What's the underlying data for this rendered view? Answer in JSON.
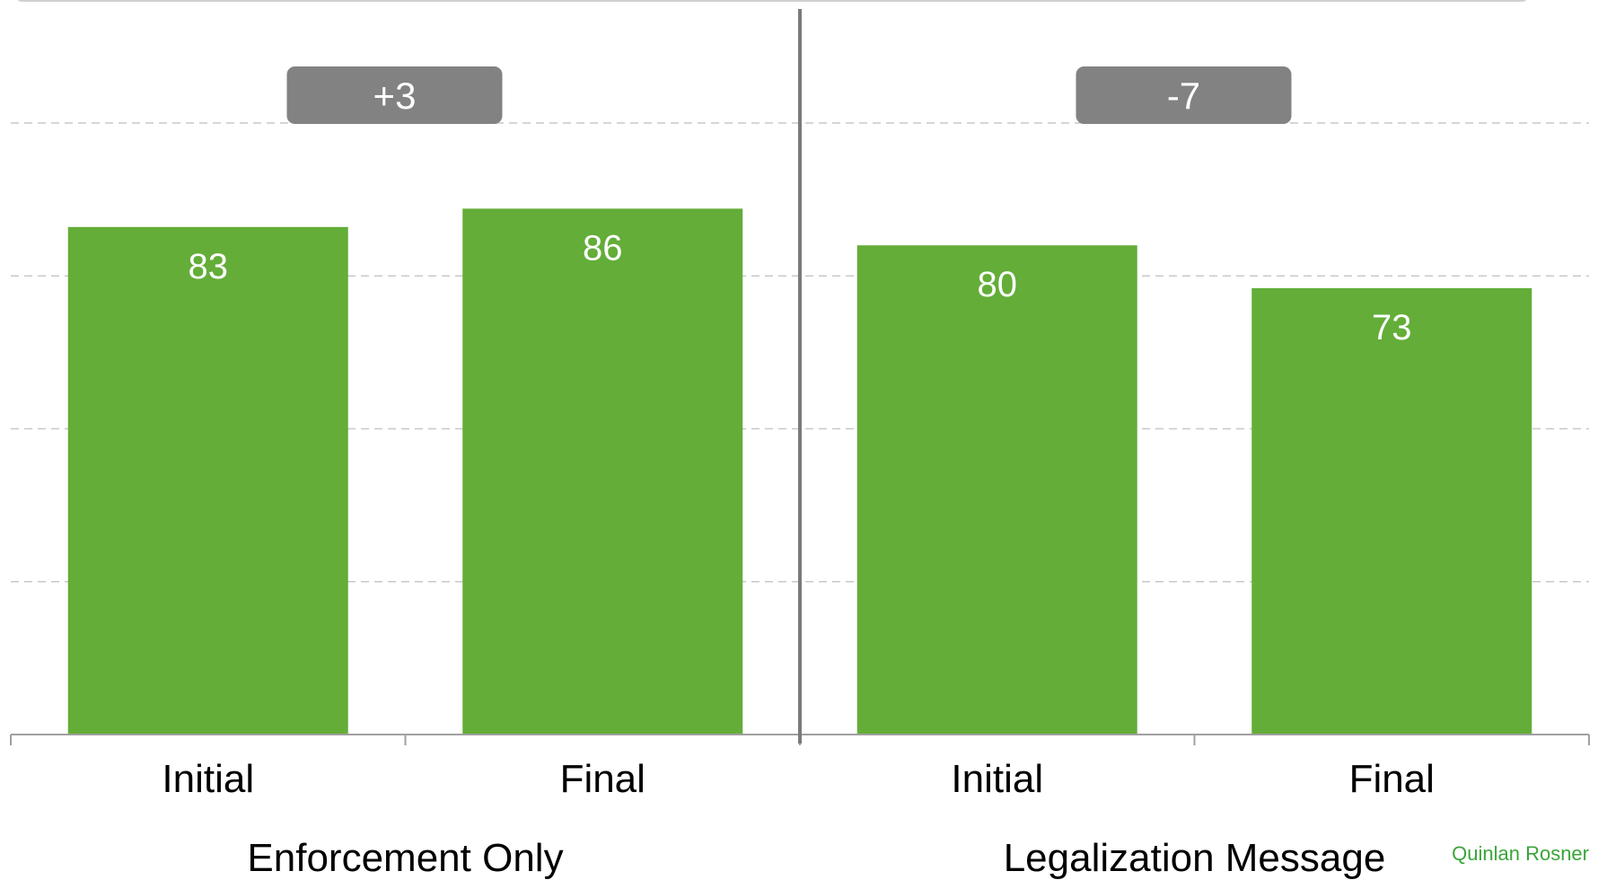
{
  "colors": {
    "bar": "#63ad38",
    "delta_badge": "#828282",
    "credit": "#3aa53a",
    "divider": "#7a7a7a",
    "grid": "#c8c8c8",
    "axis": "#a0a0a0"
  },
  "credit": "Quinlan Rosner",
  "chart_data": {
    "type": "bar",
    "ylim": [
      0,
      100
    ],
    "grid": "horizontal-dashed",
    "groups": [
      {
        "name": "Enforcement Only",
        "delta": "+3",
        "categories": [
          "Initial",
          "Final"
        ],
        "values": [
          83,
          86
        ]
      },
      {
        "name": "Legalization Message",
        "delta": "-7",
        "categories": [
          "Initial",
          "Final"
        ],
        "values": [
          80,
          73
        ]
      }
    ]
  }
}
